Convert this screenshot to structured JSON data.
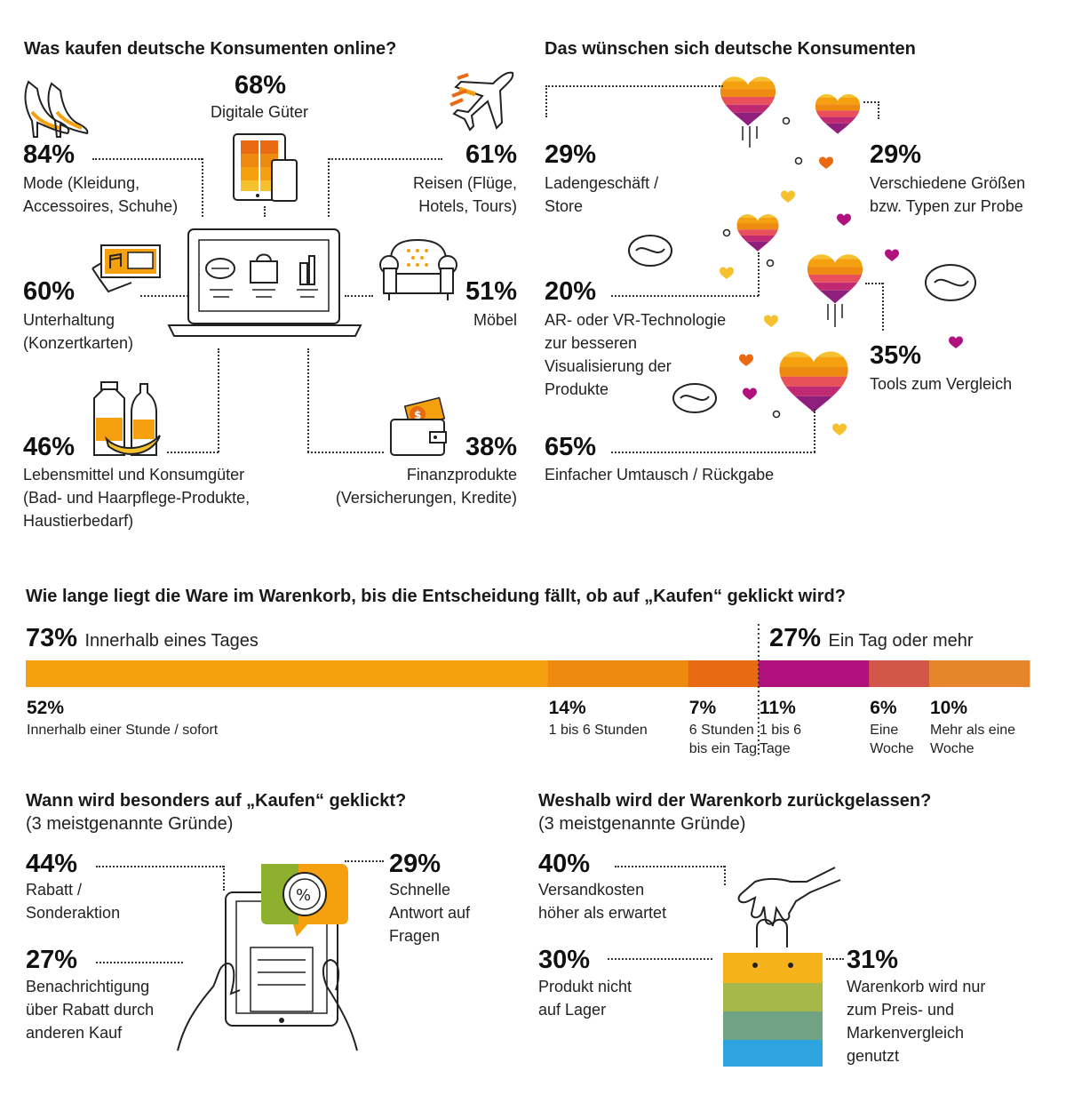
{
  "online": {
    "title": "Was kaufen deutsche Konsumenten online?",
    "items": [
      {
        "pct": "84%",
        "label": "Mode (Kleidung,\nAccessoires, Schuhe)",
        "icon": "high-heels-icon"
      },
      {
        "pct": "68%",
        "label": "Digitale Güter",
        "icon": "tablet-phone-icon"
      },
      {
        "pct": "61%",
        "label": "Reisen (Flüge,\nHotels, Tours)",
        "icon": "airplane-icon"
      },
      {
        "pct": "60%",
        "label": "Unterhaltung\n(Konzertkarten)",
        "icon": "ticket-icon"
      },
      {
        "pct": "51%",
        "label": "Möbel",
        "icon": "armchair-icon"
      },
      {
        "pct": "46%",
        "label": "Lebensmittel und Konsumgüter\n(Bad- und Haarpflege-Produkte,\nHaustierbedarf)",
        "icon": "groceries-icon"
      },
      {
        "pct": "38%",
        "label": "Finanzprodukte\n(Versicherungen, Kredite)",
        "icon": "wallet-icon"
      }
    ]
  },
  "wishes": {
    "title": "Das wünschen sich deutsche Konsumenten",
    "items": [
      {
        "pct": "29%",
        "label": "Ladengeschäft /\nStore"
      },
      {
        "pct": "29%",
        "label": "Verschiedene Größen\nbzw. Typen zur Probe"
      },
      {
        "pct": "20%",
        "label": "AR- oder VR-Technologie\nzur besseren\nVisualisierung der\nProdukte"
      },
      {
        "pct": "35%",
        "label": "Tools zum Vergleich"
      },
      {
        "pct": "65%",
        "label": "Einfacher Umtausch / Rückgabe"
      }
    ]
  },
  "cart": {
    "title": "Wie lange liegt die Ware im Warenkorb, bis die Entscheidung fällt, ob auf „Kaufen“ geklickt wird?",
    "left_pct": "73%",
    "left_label": "Innerhalb eines Tages",
    "right_pct": "27%",
    "right_label": "Ein Tag oder mehr"
  },
  "chart_data": {
    "type": "bar",
    "title": "Wie lange liegt die Ware im Warenkorb, bis die Entscheidung fällt, ob auf „Kaufen“ geklickt wird?",
    "stacked": true,
    "groups": [
      {
        "name": "Innerhalb eines Tages",
        "value": 73
      },
      {
        "name": "Ein Tag oder mehr",
        "value": 27
      }
    ],
    "segments": [
      {
        "pct": "52%",
        "label": "Innerhalb einer Stunde / sofort",
        "value": 52,
        "color": "#F5A00F"
      },
      {
        "pct": "14%",
        "label": "1 bis 6 Stunden",
        "value": 14,
        "color": "#EE8A10"
      },
      {
        "pct": "7%",
        "label": "6 Stunden\nbis ein Tag",
        "value": 7,
        "color": "#E86A12"
      },
      {
        "pct": "11%",
        "label": "1 bis 6\nTage",
        "value": 11,
        "color": "#B0117D"
      },
      {
        "pct": "6%",
        "label": "Eine\nWoche",
        "value": 6,
        "color": "#D4564A"
      },
      {
        "pct": "10%",
        "label": "Mehr als eine\nWoche",
        "value": 10,
        "color": "#E6852C"
      }
    ]
  },
  "buy": {
    "title": "Wann wird besonders auf „Kaufen“ geklickt?",
    "subtitle": "(3 meistgenannte Gründe)",
    "items": [
      {
        "pct": "44%",
        "label": "Rabatt /\nSonderaktion"
      },
      {
        "pct": "27%",
        "label": "Benachrichtigung\nüber Rabatt durch\nanderen Kauf"
      },
      {
        "pct": "29%",
        "label": "Schnelle\nAntwort auf\nFragen"
      }
    ]
  },
  "abandon": {
    "title": "Weshalb wird der Warenkorb zurückgelassen?",
    "subtitle": "(3 meistgenannte Gründe)",
    "items": [
      {
        "pct": "40%",
        "label": "Versandkosten\nhöher als erwartet"
      },
      {
        "pct": "30%",
        "label": "Produkt nicht\nauf Lager"
      },
      {
        "pct": "31%",
        "label": "Warenkorb wird nur\nzum Preis- und\nMarkenvergleich\ngenutzt"
      }
    ]
  },
  "colors": {
    "orange": "#F5A00F",
    "dark_orange": "#E86A12",
    "magenta": "#B0117D",
    "purple": "#8E1F7C",
    "yellow": "#F5C12E",
    "olive": "#A6B84A",
    "green": "#6FA383",
    "blue": "#2EA3DD"
  }
}
